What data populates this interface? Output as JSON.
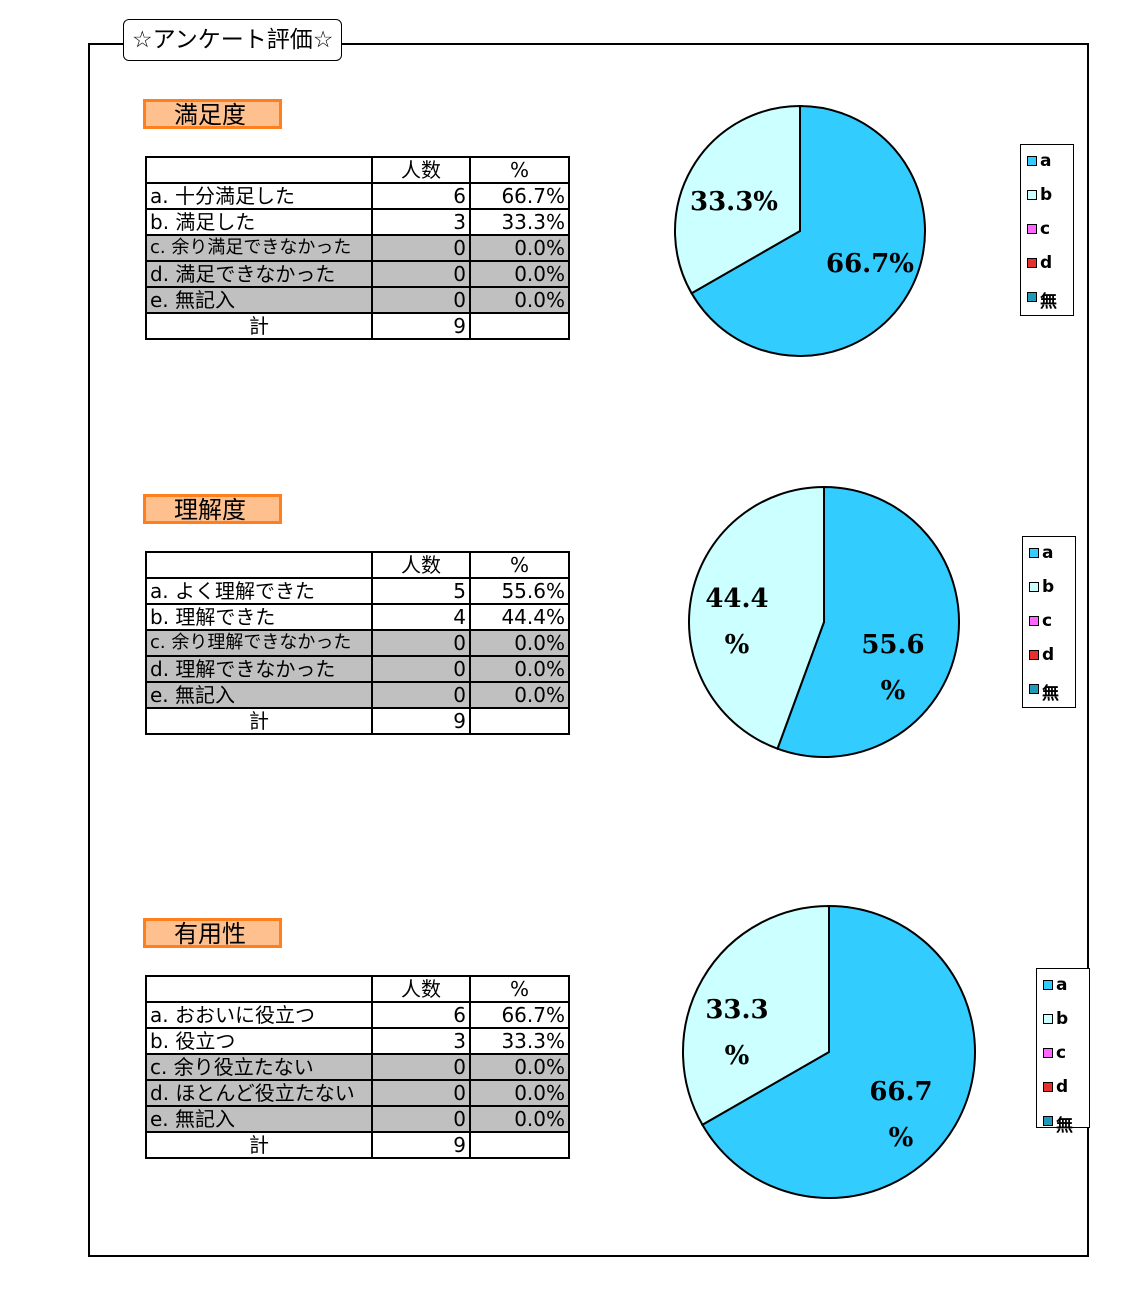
{
  "page_title": "☆アンケート評価☆",
  "header": {
    "count": "人数",
    "percent": "%"
  },
  "total_label": "計",
  "legend": [
    "a",
    "b",
    "c",
    "d",
    "無"
  ],
  "colors": {
    "a": "#33ccff",
    "b": "#ccffff",
    "c": "#ff66ff",
    "d": "#e63030",
    "none": "#1f9ab8"
  },
  "sections": [
    {
      "title": "満足度",
      "rows": [
        {
          "label": "a.  十分満足した",
          "count": "6",
          "pct": "66.7%"
        },
        {
          "label": "b.  満足した",
          "count": "3",
          "pct": "33.3%"
        },
        {
          "label": "c.  余り満足できなかった",
          "count": "0",
          "pct": "0.0%"
        },
        {
          "label": "d.  満足できなかった",
          "count": "0",
          "pct": "0.0%"
        },
        {
          "label": " e.  無記入",
          "count": "0",
          "pct": "0.0%"
        }
      ],
      "total": "9",
      "pie_labels": {
        "a": [
          "66.7%"
        ],
        "b": [
          "33.3%"
        ]
      }
    },
    {
      "title": "理解度",
      "rows": [
        {
          "label": "a.  よく理解できた",
          "count": "5",
          "pct": "55.6%"
        },
        {
          "label": "b.  理解できた",
          "count": "4",
          "pct": "44.4%"
        },
        {
          "label": "c.  余り理解できなかった",
          "count": "0",
          "pct": "0.0%"
        },
        {
          "label": "d.  理解できなかった",
          "count": "0",
          "pct": "0.0%"
        },
        {
          "label": " e.  無記入",
          "count": "0",
          "pct": "0.0%"
        }
      ],
      "total": "9",
      "pie_labels": {
        "a": [
          "55.6",
          "%"
        ],
        "b": [
          "44.4",
          "%"
        ]
      }
    },
    {
      "title": "有用性",
      "rows": [
        {
          "label": "a.  おおいに役立つ",
          "count": "6",
          "pct": "66.7%"
        },
        {
          "label": "b.  役立つ",
          "count": "3",
          "pct": "33.3%"
        },
        {
          "label": "c.  余り役立たない",
          "count": "0",
          "pct": "0.0%"
        },
        {
          "label": "d.  ほとんど役立たない",
          "count": "0",
          "pct": "0.0%"
        },
        {
          "label": " e.  無記入",
          "count": "0",
          "pct": "0.0%"
        }
      ],
      "total": "9",
      "pie_labels": {
        "a": [
          "66.7",
          "%"
        ],
        "b": [
          "33.3",
          "%"
        ]
      }
    }
  ],
  "chart_data": [
    {
      "type": "pie",
      "title": "",
      "categories": [
        "a",
        "b",
        "c",
        "d",
        "無"
      ],
      "values": [
        66.7,
        33.3,
        0,
        0,
        0
      ]
    },
    {
      "type": "pie",
      "title": "",
      "categories": [
        "a",
        "b",
        "c",
        "d",
        "無"
      ],
      "values": [
        55.6,
        44.4,
        0,
        0,
        0
      ]
    },
    {
      "type": "pie",
      "title": "",
      "categories": [
        "a",
        "b",
        "c",
        "d",
        "無"
      ],
      "values": [
        66.7,
        33.3,
        0,
        0,
        0
      ]
    }
  ]
}
